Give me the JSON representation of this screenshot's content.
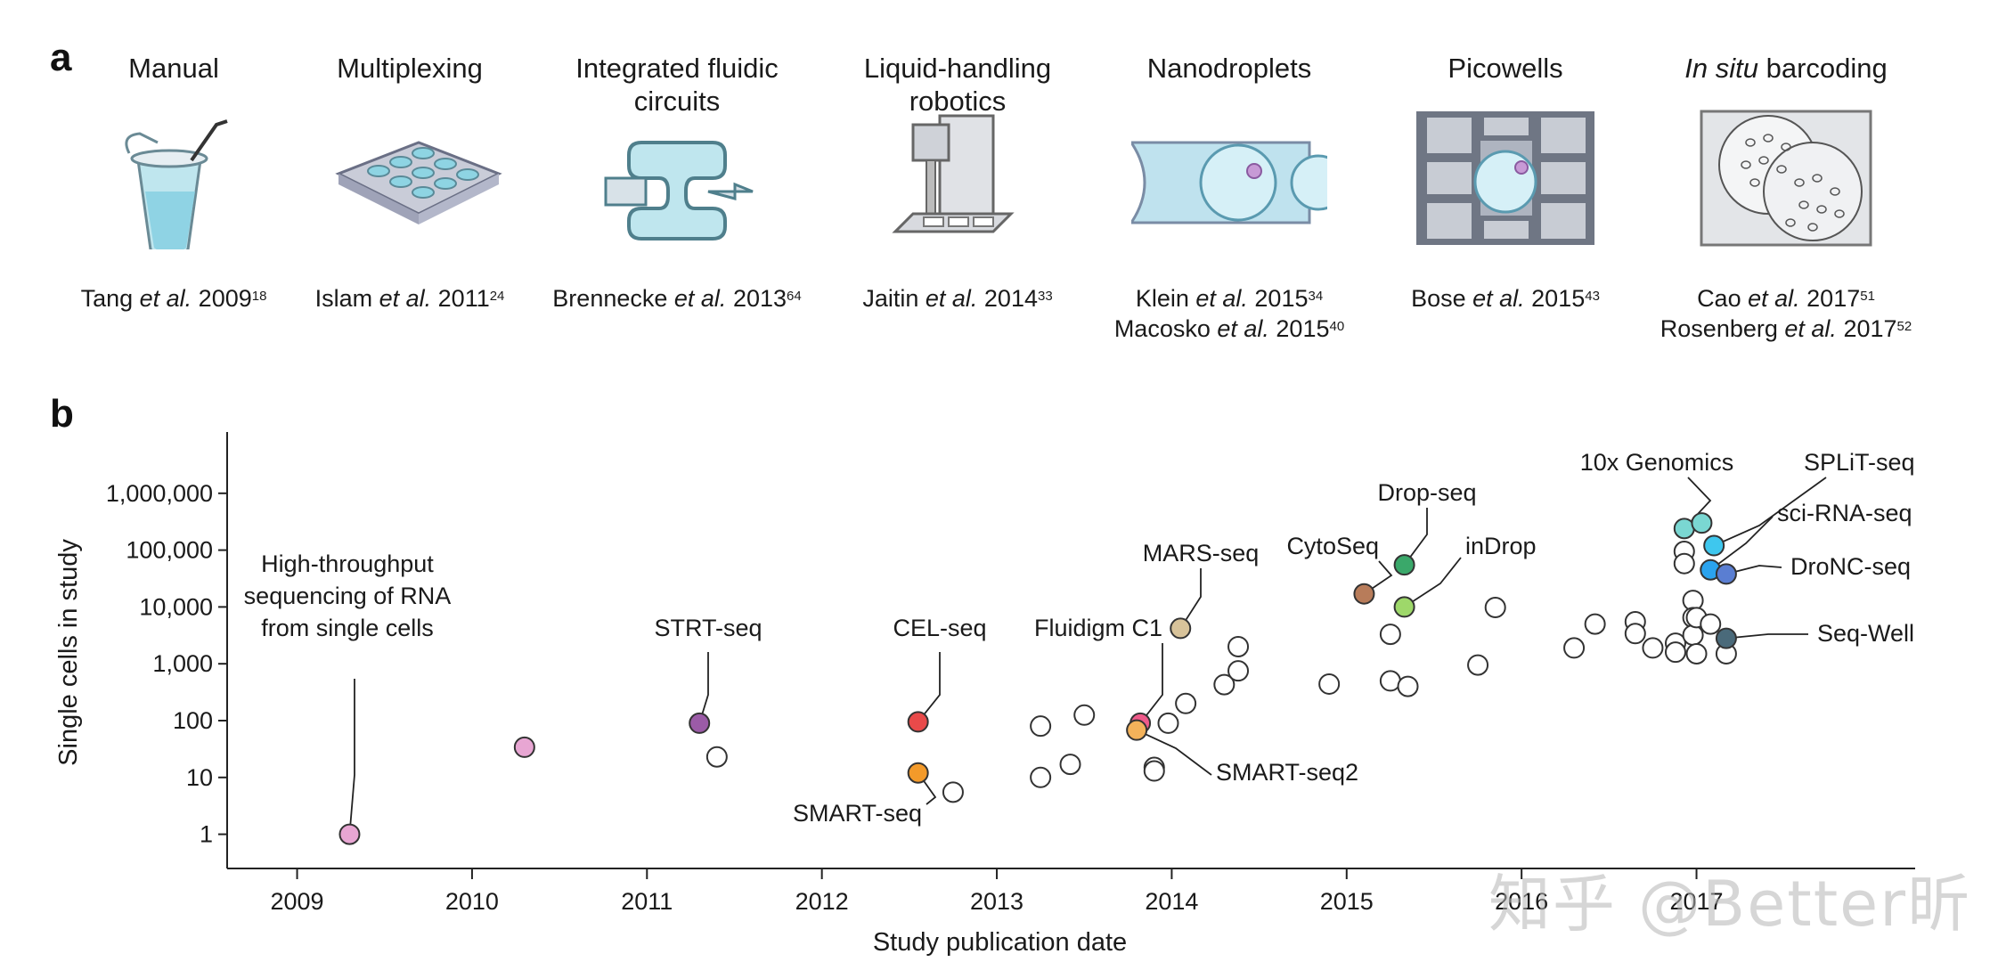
{
  "panel_a": {
    "letter": "a",
    "methods": [
      {
        "title": "Manual",
        "title_italic": "",
        "refs": [
          {
            "author": "Tang",
            "etal": "et al.",
            "year": "2009",
            "sup": "18"
          }
        ]
      },
      {
        "title": "Multiplexing",
        "title_italic": "",
        "refs": [
          {
            "author": "Islam",
            "etal": "et al.",
            "year": "2011",
            "sup": "24"
          }
        ]
      },
      {
        "title": "Integrated fluidic circuits",
        "title_italic": "",
        "refs": [
          {
            "author": "Brennecke",
            "etal": "et al.",
            "year": "2013",
            "sup": "64"
          }
        ]
      },
      {
        "title": "Liquid-handling robotics",
        "title_italic": "",
        "refs": [
          {
            "author": "Jaitin",
            "etal": "et al.",
            "year": "2014",
            "sup": "33"
          }
        ]
      },
      {
        "title": "Nanodroplets",
        "title_italic": "",
        "refs": [
          {
            "author": "Klein",
            "etal": "et al.",
            "year": "2015",
            "sup": "34"
          },
          {
            "author": "Macosko",
            "etal": "et al.",
            "year": "2015",
            "sup": "40"
          }
        ]
      },
      {
        "title": "Picowells",
        "title_italic": "",
        "refs": [
          {
            "author": "Bose",
            "etal": "et al.",
            "year": "2015",
            "sup": "43"
          }
        ]
      },
      {
        "title": " barcoding",
        "title_italic": "In situ",
        "refs": [
          {
            "author": "Cao",
            "etal": "et al.",
            "year": "2017",
            "sup": "51"
          },
          {
            "author": "Rosenberg",
            "etal": "et al.",
            "year": "2017",
            "sup": "52"
          }
        ]
      }
    ],
    "icons": [
      "tube-icon",
      "multiwell-plate-icon",
      "fluidic-circuit-icon",
      "robot-icon",
      "nanodroplet-icon",
      "picowell-icon",
      "barcoding-icon"
    ]
  },
  "panel_b": {
    "letter": "b"
  },
  "watermark": "知乎 @Better昕",
  "chart_data": {
    "type": "scatter",
    "title": "",
    "xlabel": "Study publication date",
    "ylabel": "Single cells in study",
    "x_ticks": [
      "2009",
      "2010",
      "2011",
      "2012",
      "2013",
      "2014",
      "2015",
      "2016",
      "2017"
    ],
    "xlim": [
      2008.6,
      2018.25
    ],
    "y_scale": "log",
    "y_ticks": [
      "1",
      "10",
      "100",
      "1,000",
      "10,000",
      "100,000",
      "1,000,000"
    ],
    "ylim": [
      0.25,
      10000000
    ],
    "grid": false,
    "labeled_points": [
      {
        "label": "High-throughput\nsequencing of RNA\nfrom single cells",
        "x": 2009.3,
        "y": 1,
        "color": "#e8a6d3"
      },
      {
        "label": "",
        "x": 2010.3,
        "y": 34,
        "color": "#e8a6d3"
      },
      {
        "label": "STRT-seq",
        "x": 2011.3,
        "y": 90,
        "color": "#9b5ba7"
      },
      {
        "label": "CEL-seq",
        "x": 2012.55,
        "y": 95,
        "color": "#e84a4a"
      },
      {
        "label": "SMART-seq",
        "x": 2012.55,
        "y": 12,
        "color": "#f39a2a"
      },
      {
        "label": "MARS-seq",
        "x": 2014.05,
        "y": 4200,
        "color": "#d8c39a"
      },
      {
        "label": "Fluidigm C1",
        "x": 2013.82,
        "y": 90,
        "color": "#ef5a8a"
      },
      {
        "label": "SMART-seq2",
        "x": 2013.8,
        "y": 68,
        "color": "#f3b25a"
      },
      {
        "label": "CytoSeq",
        "x": 2015.1,
        "y": 17000,
        "color": "#b87c5a"
      },
      {
        "label": "Drop-seq",
        "x": 2015.33,
        "y": 55000,
        "color": "#3aa86a"
      },
      {
        "label": "inDrop",
        "x": 2015.33,
        "y": 10000,
        "color": "#9ed86a"
      },
      {
        "label": "10x Genomics",
        "x": 2016.93,
        "y": 240000,
        "color": "#7ad7d2"
      },
      {
        "label": "",
        "x": 2017.03,
        "y": 300000,
        "color": "#7ad7d2"
      },
      {
        "label": "SPLiT-seq",
        "x": 2017.1,
        "y": 120000,
        "color": "#3ec7ee"
      },
      {
        "label": "sci-RNA-seq",
        "x": 2017.08,
        "y": 45000,
        "color": "#2aa3ee"
      },
      {
        "label": "DroNC-seq",
        "x": 2017.17,
        "y": 38000,
        "color": "#5a7ed2"
      },
      {
        "label": "Seq-Well",
        "x": 2017.17,
        "y": 2800,
        "color": "#4a6a7a"
      }
    ],
    "other_points": [
      {
        "x": 2011.4,
        "y": 23
      },
      {
        "x": 2012.75,
        "y": 5.5
      },
      {
        "x": 2013.25,
        "y": 80
      },
      {
        "x": 2013.25,
        "y": 10
      },
      {
        "x": 2013.42,
        "y": 17
      },
      {
        "x": 2013.5,
        "y": 125
      },
      {
        "x": 2013.9,
        "y": 15
      },
      {
        "x": 2013.9,
        "y": 13
      },
      {
        "x": 2013.98,
        "y": 90
      },
      {
        "x": 2014.08,
        "y": 200
      },
      {
        "x": 2014.3,
        "y": 430
      },
      {
        "x": 2014.38,
        "y": 750
      },
      {
        "x": 2014.38,
        "y": 2000
      },
      {
        "x": 2014.9,
        "y": 440
      },
      {
        "x": 2015.25,
        "y": 3300
      },
      {
        "x": 2015.25,
        "y": 500
      },
      {
        "x": 2015.35,
        "y": 400
      },
      {
        "x": 2015.75,
        "y": 950
      },
      {
        "x": 2015.85,
        "y": 9800
      },
      {
        "x": 2016.3,
        "y": 1900
      },
      {
        "x": 2016.42,
        "y": 5000
      },
      {
        "x": 2016.65,
        "y": 5500
      },
      {
        "x": 2016.65,
        "y": 3400
      },
      {
        "x": 2016.75,
        "y": 1900
      },
      {
        "x": 2016.88,
        "y": 2300
      },
      {
        "x": 2016.88,
        "y": 1600
      },
      {
        "x": 2016.98,
        "y": 13000
      },
      {
        "x": 2016.98,
        "y": 6500
      },
      {
        "x": 2016.98,
        "y": 3200
      },
      {
        "x": 2016.93,
        "y": 95000
      },
      {
        "x": 2016.93,
        "y": 58000
      },
      {
        "x": 2017.0,
        "y": 6500
      },
      {
        "x": 2017.08,
        "y": 5000
      },
      {
        "x": 2017.0,
        "y": 1500
      },
      {
        "x": 2017.17,
        "y": 1500
      }
    ]
  }
}
